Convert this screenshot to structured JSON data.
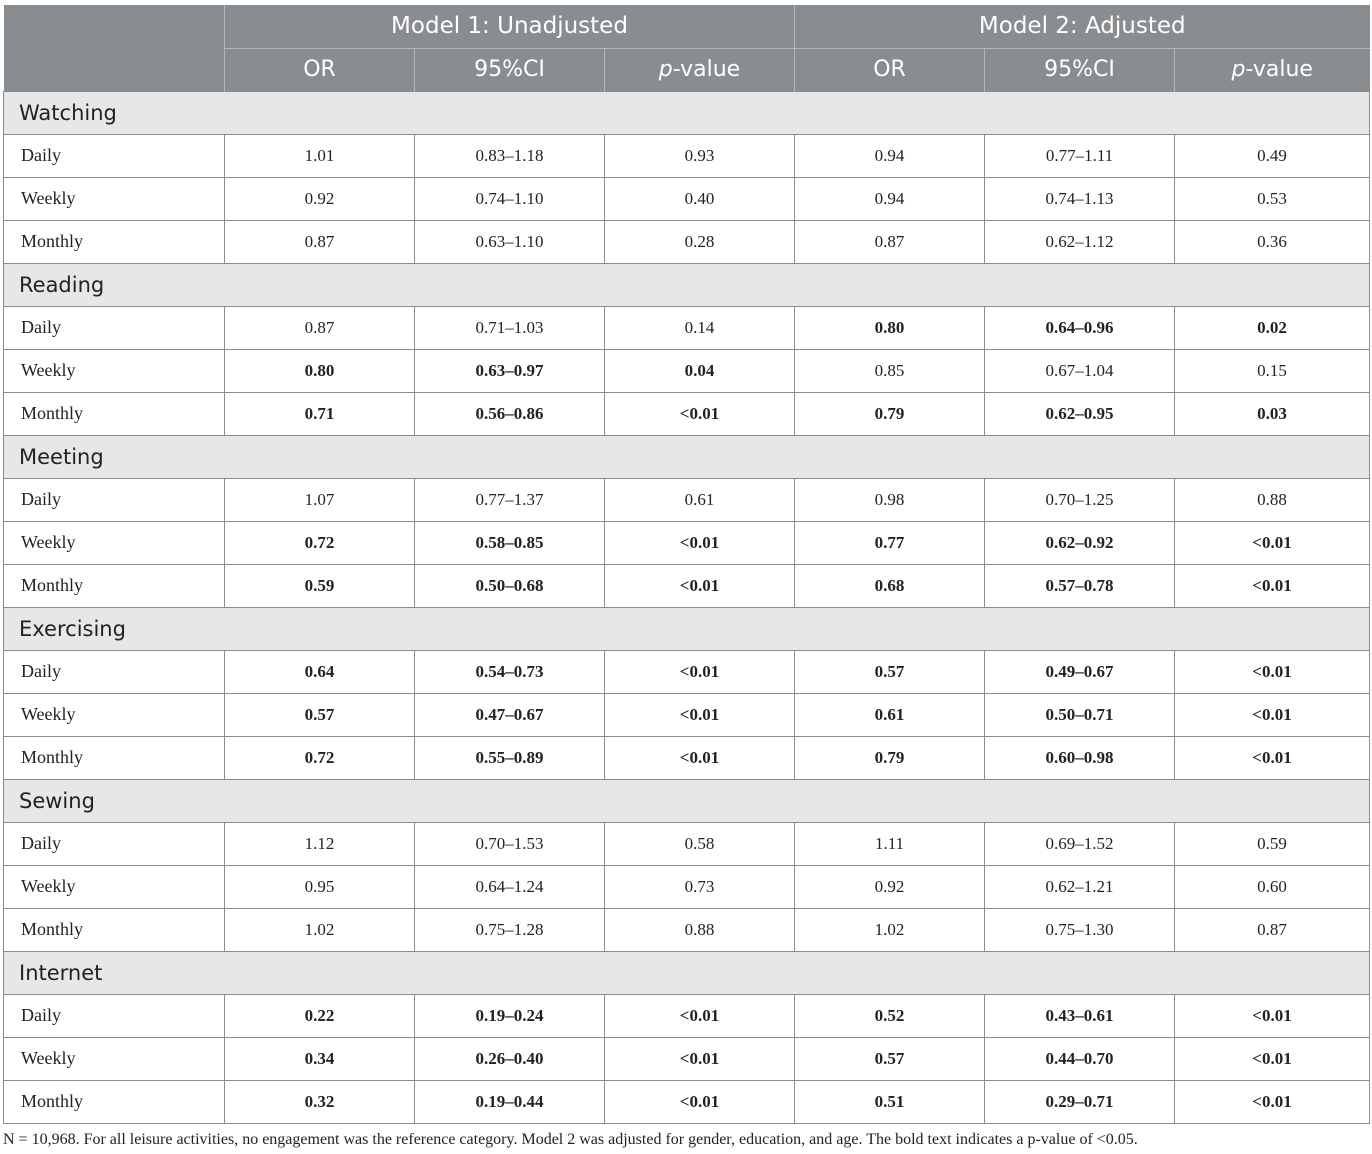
{
  "header": {
    "model1": "Model 1: Unadjusted",
    "model2": "Model 2: Adjusted",
    "cols": [
      {
        "main": "OR",
        "italic": ""
      },
      {
        "main": "95%CI",
        "italic": ""
      },
      {
        "italic": "p",
        "main": "-value"
      },
      {
        "main": "OR",
        "italic": ""
      },
      {
        "main": "95%CI",
        "italic": ""
      },
      {
        "italic": "p",
        "main": "-value"
      }
    ]
  },
  "groups": [
    {
      "name": "Watching",
      "rows": [
        {
          "label": "Daily",
          "cells": [
            [
              "1.01",
              0
            ],
            [
              "0.83–1.18",
              0
            ],
            [
              "0.93",
              0
            ],
            [
              "0.94",
              0
            ],
            [
              "0.77–1.11",
              0
            ],
            [
              "0.49",
              0
            ]
          ]
        },
        {
          "label": "Weekly",
          "cells": [
            [
              "0.92",
              0
            ],
            [
              "0.74–1.10",
              0
            ],
            [
              "0.40",
              0
            ],
            [
              "0.94",
              0
            ],
            [
              "0.74–1.13",
              0
            ],
            [
              "0.53",
              0
            ]
          ]
        },
        {
          "label": "Monthly",
          "cells": [
            [
              "0.87",
              0
            ],
            [
              "0.63–1.10",
              0
            ],
            [
              "0.28",
              0
            ],
            [
              "0.87",
              0
            ],
            [
              "0.62–1.12",
              0
            ],
            [
              "0.36",
              0
            ]
          ]
        }
      ]
    },
    {
      "name": "Reading",
      "rows": [
        {
          "label": "Daily",
          "cells": [
            [
              "0.87",
              0
            ],
            [
              "0.71–1.03",
              0
            ],
            [
              "0.14",
              0
            ],
            [
              "0.80",
              1
            ],
            [
              "0.64–0.96",
              1
            ],
            [
              "0.02",
              1
            ]
          ]
        },
        {
          "label": "Weekly",
          "cells": [
            [
              "0.80",
              1
            ],
            [
              "0.63–0.97",
              1
            ],
            [
              "0.04",
              1
            ],
            [
              "0.85",
              0
            ],
            [
              "0.67–1.04",
              0
            ],
            [
              "0.15",
              0
            ]
          ]
        },
        {
          "label": "Monthly",
          "cells": [
            [
              "0.71",
              1
            ],
            [
              "0.56–0.86",
              1
            ],
            [
              "<0.01",
              1
            ],
            [
              "0.79",
              1
            ],
            [
              "0.62–0.95",
              1
            ],
            [
              "0.03",
              1
            ]
          ]
        }
      ]
    },
    {
      "name": "Meeting",
      "rows": [
        {
          "label": "Daily",
          "cells": [
            [
              "1.07",
              0
            ],
            [
              "0.77–1.37",
              0
            ],
            [
              "0.61",
              0
            ],
            [
              "0.98",
              0
            ],
            [
              "0.70–1.25",
              0
            ],
            [
              "0.88",
              0
            ]
          ]
        },
        {
          "label": "Weekly",
          "cells": [
            [
              "0.72",
              1
            ],
            [
              "0.58–0.85",
              1
            ],
            [
              "<0.01",
              1
            ],
            [
              "0.77",
              1
            ],
            [
              "0.62–0.92",
              1
            ],
            [
              "<0.01",
              1
            ]
          ]
        },
        {
          "label": "Monthly",
          "cells": [
            [
              "0.59",
              1
            ],
            [
              "0.50–0.68",
              1
            ],
            [
              "<0.01",
              1
            ],
            [
              "0.68",
              1
            ],
            [
              "0.57–0.78",
              1
            ],
            [
              "<0.01",
              1
            ]
          ]
        }
      ]
    },
    {
      "name": "Exercising",
      "rows": [
        {
          "label": "Daily",
          "cells": [
            [
              "0.64",
              1
            ],
            [
              "0.54–0.73",
              1
            ],
            [
              "<0.01",
              1
            ],
            [
              "0.57",
              1
            ],
            [
              "0.49–0.67",
              1
            ],
            [
              "<0.01",
              1
            ]
          ]
        },
        {
          "label": "Weekly",
          "cells": [
            [
              "0.57",
              1
            ],
            [
              "0.47–0.67",
              1
            ],
            [
              "<0.01",
              1
            ],
            [
              "0.61",
              1
            ],
            [
              "0.50–0.71",
              1
            ],
            [
              "<0.01",
              1
            ]
          ]
        },
        {
          "label": "Monthly",
          "cells": [
            [
              "0.72",
              1
            ],
            [
              "0.55–0.89",
              1
            ],
            [
              "<0.01",
              1
            ],
            [
              "0.79",
              1
            ],
            [
              "0.60–0.98",
              1
            ],
            [
              "<0.01",
              1
            ]
          ]
        }
      ]
    },
    {
      "name": "Sewing",
      "rows": [
        {
          "label": "Daily",
          "cells": [
            [
              "1.12",
              0
            ],
            [
              "0.70–1.53",
              0
            ],
            [
              "0.58",
              0
            ],
            [
              "1.11",
              0
            ],
            [
              "0.69–1.52",
              0
            ],
            [
              "0.59",
              0
            ]
          ]
        },
        {
          "label": "Weekly",
          "cells": [
            [
              "0.95",
              0
            ],
            [
              "0.64–1.24",
              0
            ],
            [
              "0.73",
              0
            ],
            [
              "0.92",
              0
            ],
            [
              "0.62–1.21",
              0
            ],
            [
              "0.60",
              0
            ]
          ]
        },
        {
          "label": "Monthly",
          "cells": [
            [
              "1.02",
              0
            ],
            [
              "0.75–1.28",
              0
            ],
            [
              "0.88",
              0
            ],
            [
              "1.02",
              0
            ],
            [
              "0.75–1.30",
              0
            ],
            [
              "0.87",
              0
            ]
          ]
        }
      ]
    },
    {
      "name": "Internet",
      "rows": [
        {
          "label": "Daily",
          "cells": [
            [
              "0.22",
              1
            ],
            [
              "0.19–0.24",
              1
            ],
            [
              "<0.01",
              1
            ],
            [
              "0.52",
              1
            ],
            [
              "0.43–0.61",
              1
            ],
            [
              "<0.01",
              1
            ]
          ]
        },
        {
          "label": "Weekly",
          "cells": [
            [
              "0.34",
              1
            ],
            [
              "0.26–0.40",
              1
            ],
            [
              "<0.01",
              1
            ],
            [
              "0.57",
              1
            ],
            [
              "0.44–0.70",
              1
            ],
            [
              "<0.01",
              1
            ]
          ]
        },
        {
          "label": "Monthly",
          "cells": [
            [
              "0.32",
              1
            ],
            [
              "0.19–0.44",
              1
            ],
            [
              "<0.01",
              1
            ],
            [
              "0.51",
              1
            ],
            [
              "0.29–0.71",
              1
            ],
            [
              "<0.01",
              1
            ]
          ]
        }
      ]
    }
  ],
  "footnote": "N = 10,968. For all leisure activities, no engagement was the reference category. Model 2 was adjusted for gender, education, and age. The bold text indicates a p-value of <0.05."
}
